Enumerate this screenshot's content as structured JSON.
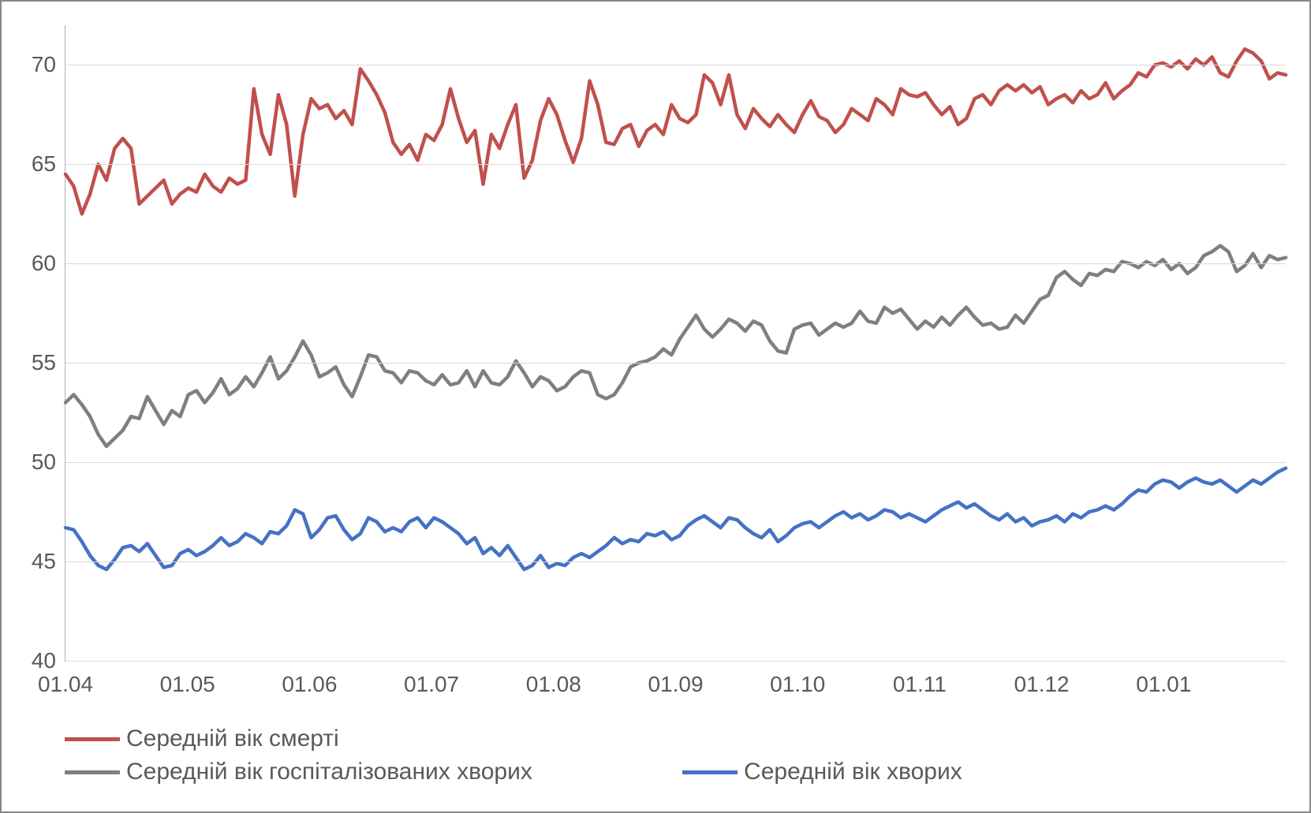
{
  "chart": {
    "type": "line",
    "background_color": "#ffffff",
    "border_color": "#888888",
    "grid_color": "#d9d9d9",
    "axis_color": "#b0b0b0",
    "tick_font_size": 28,
    "tick_color": "#595959",
    "ylim": [
      40,
      72
    ],
    "yticks": [
      40,
      45,
      50,
      55,
      60,
      65,
      70
    ],
    "x_labels": [
      "01.04",
      "01.05",
      "01.06",
      "01.07",
      "01.08",
      "01.09",
      "01.10",
      "01.11",
      "01.12",
      "01.01"
    ],
    "line_width": 4.5,
    "series": [
      {
        "name": "Середній вік смерті",
        "color": "#c0504d",
        "values": [
          64.5,
          63.9,
          62.5,
          63.5,
          65.0,
          64.2,
          65.8,
          66.3,
          65.8,
          63.0,
          63.4,
          63.8,
          64.2,
          63.0,
          63.5,
          63.8,
          63.6,
          64.5,
          63.9,
          63.6,
          64.3,
          64.0,
          64.2,
          68.8,
          66.5,
          65.5,
          68.5,
          67.0,
          63.4,
          66.5,
          68.3,
          67.8,
          68.0,
          67.3,
          67.7,
          67.0,
          69.8,
          69.2,
          68.5,
          67.6,
          66.1,
          65.5,
          66.0,
          65.2,
          66.5,
          66.2,
          67.0,
          68.8,
          67.3,
          66.1,
          66.7,
          64.0,
          66.5,
          65.8,
          67.0,
          68.0,
          64.3,
          65.2,
          67.2,
          68.3,
          67.5,
          66.2,
          65.1,
          66.3,
          69.2,
          68.0,
          66.1,
          66.0,
          66.8,
          67.0,
          65.9,
          66.7,
          67.0,
          66.5,
          68.0,
          67.3,
          67.1,
          67.5,
          69.5,
          69.1,
          68.0,
          69.5,
          67.5,
          66.8,
          67.8,
          67.3,
          66.9,
          67.5,
          67.0,
          66.6,
          67.5,
          68.2,
          67.4,
          67.2,
          66.6,
          67.0,
          67.8,
          67.5,
          67.2,
          68.3,
          68.0,
          67.5,
          68.8,
          68.5,
          68.4,
          68.6,
          68.0,
          67.5,
          67.9,
          67.0,
          67.3,
          68.3,
          68.5,
          68.0,
          68.7,
          69.0,
          68.7,
          69.0,
          68.6,
          68.9,
          68.0,
          68.3,
          68.5,
          68.1,
          68.7,
          68.3,
          68.5,
          69.1,
          68.3,
          68.7,
          69.0,
          69.6,
          69.4,
          70.0,
          70.1,
          69.9,
          70.2,
          69.8,
          70.3,
          70.0,
          70.4,
          69.6,
          69.4,
          70.2,
          70.8,
          70.6,
          70.2,
          69.3,
          69.6,
          69.5
        ]
      },
      {
        "name": "Середній вік госпіталізованих хворих",
        "color": "#7f7f7f",
        "values": [
          53.0,
          53.4,
          52.9,
          52.3,
          51.4,
          50.8,
          51.2,
          51.6,
          52.3,
          52.2,
          53.3,
          52.6,
          51.9,
          52.6,
          52.3,
          53.4,
          53.6,
          53.0,
          53.5,
          54.2,
          53.4,
          53.7,
          54.3,
          53.8,
          54.5,
          55.3,
          54.2,
          54.6,
          55.3,
          56.1,
          55.4,
          54.3,
          54.5,
          54.8,
          53.9,
          53.3,
          54.3,
          55.4,
          55.3,
          54.6,
          54.5,
          54.0,
          54.6,
          54.5,
          54.1,
          53.9,
          54.4,
          53.9,
          54.0,
          54.6,
          53.8,
          54.6,
          54.0,
          53.9,
          54.3,
          55.1,
          54.5,
          53.8,
          54.3,
          54.1,
          53.6,
          53.8,
          54.3,
          54.6,
          54.5,
          53.4,
          53.2,
          53.4,
          54.0,
          54.8,
          55.0,
          55.1,
          55.3,
          55.7,
          55.4,
          56.2,
          56.8,
          57.4,
          56.7,
          56.3,
          56.7,
          57.2,
          57.0,
          56.6,
          57.1,
          56.9,
          56.1,
          55.6,
          55.5,
          56.7,
          56.9,
          57.0,
          56.4,
          56.7,
          57.0,
          56.8,
          57.0,
          57.6,
          57.1,
          57.0,
          57.8,
          57.5,
          57.7,
          57.2,
          56.7,
          57.1,
          56.8,
          57.3,
          56.9,
          57.4,
          57.8,
          57.3,
          56.9,
          57.0,
          56.7,
          56.8,
          57.4,
          57.0,
          57.6,
          58.2,
          58.4,
          59.3,
          59.6,
          59.2,
          58.9,
          59.5,
          59.4,
          59.7,
          59.6,
          60.1,
          60.0,
          59.8,
          60.1,
          59.9,
          60.2,
          59.7,
          60.0,
          59.5,
          59.8,
          60.4,
          60.6,
          60.9,
          60.6,
          59.6,
          59.9,
          60.5,
          59.8,
          60.4,
          60.2,
          60.3
        ]
      },
      {
        "name": "Середній вік хворих",
        "color": "#4472c4",
        "values": [
          46.7,
          46.6,
          46.0,
          45.3,
          44.8,
          44.6,
          45.1,
          45.7,
          45.8,
          45.5,
          45.9,
          45.3,
          44.7,
          44.8,
          45.4,
          45.6,
          45.3,
          45.5,
          45.8,
          46.2,
          45.8,
          46.0,
          46.4,
          46.2,
          45.9,
          46.5,
          46.4,
          46.8,
          47.6,
          47.4,
          46.2,
          46.6,
          47.2,
          47.3,
          46.6,
          46.1,
          46.4,
          47.2,
          47.0,
          46.5,
          46.7,
          46.5,
          47.0,
          47.2,
          46.7,
          47.2,
          47.0,
          46.7,
          46.4,
          45.9,
          46.2,
          45.4,
          45.7,
          45.3,
          45.8,
          45.2,
          44.6,
          44.8,
          45.3,
          44.7,
          44.9,
          44.8,
          45.2,
          45.4,
          45.2,
          45.5,
          45.8,
          46.2,
          45.9,
          46.1,
          46.0,
          46.4,
          46.3,
          46.5,
          46.1,
          46.3,
          46.8,
          47.1,
          47.3,
          47.0,
          46.7,
          47.2,
          47.1,
          46.7,
          46.4,
          46.2,
          46.6,
          46.0,
          46.3,
          46.7,
          46.9,
          47.0,
          46.7,
          47.0,
          47.3,
          47.5,
          47.2,
          47.4,
          47.1,
          47.3,
          47.6,
          47.5,
          47.2,
          47.4,
          47.2,
          47.0,
          47.3,
          47.6,
          47.8,
          48.0,
          47.7,
          47.9,
          47.6,
          47.3,
          47.1,
          47.4,
          47.0,
          47.2,
          46.8,
          47.0,
          47.1,
          47.3,
          47.0,
          47.4,
          47.2,
          47.5,
          47.6,
          47.8,
          47.6,
          47.9,
          48.3,
          48.6,
          48.5,
          48.9,
          49.1,
          49.0,
          48.7,
          49.0,
          49.2,
          49.0,
          48.9,
          49.1,
          48.8,
          48.5,
          48.8,
          49.1,
          48.9,
          49.2,
          49.5,
          49.7
        ]
      }
    ],
    "legend": {
      "font_size": 30,
      "text_color": "#595959",
      "swatch_width": 70,
      "swatch_height": 5
    }
  }
}
